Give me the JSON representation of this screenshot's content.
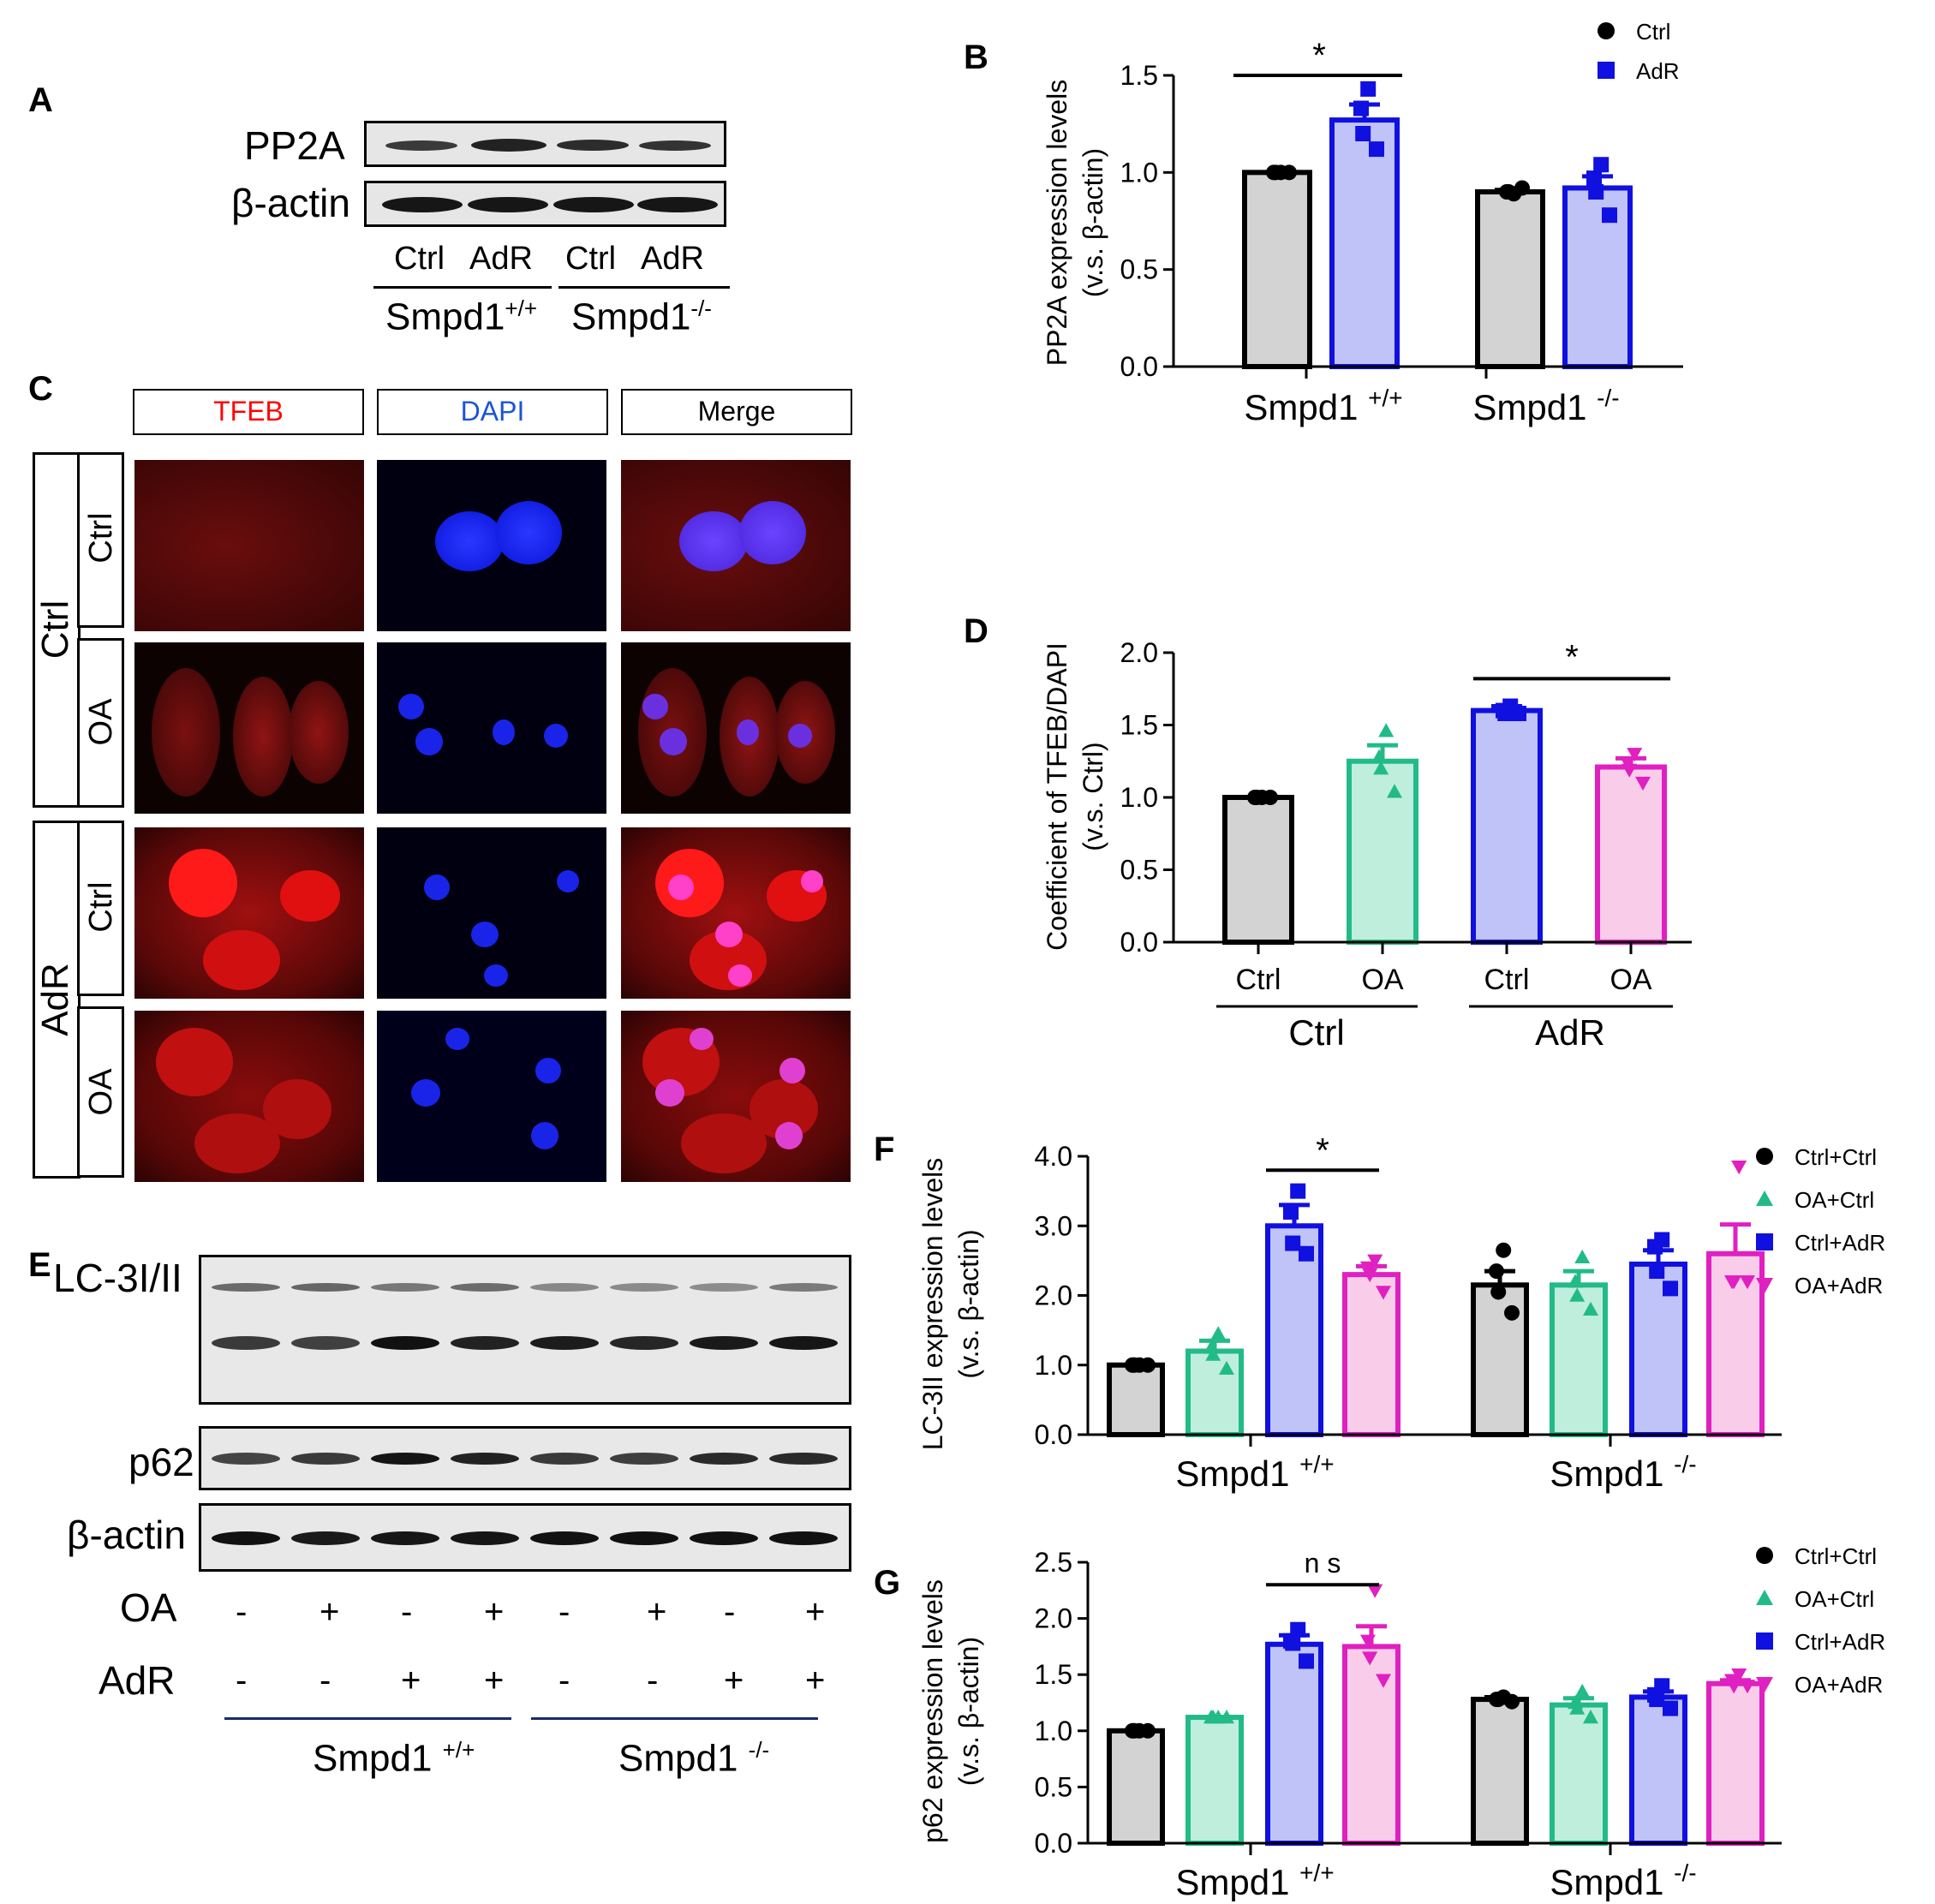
{
  "panels": {
    "A": {
      "label": "A",
      "bands": [
        "PP2A",
        "β-actin"
      ],
      "lanes": [
        "Ctrl",
        "AdR",
        "Ctrl",
        "AdR"
      ],
      "groups": [
        {
          "base": "Smpd1",
          "sup": "+/+"
        },
        {
          "base": "Smpd1",
          "sup": "-/-"
        }
      ]
    },
    "C": {
      "label": "C",
      "columns": [
        "TFEB",
        "DAPI",
        "Merge"
      ],
      "rows": [
        {
          "group": "Ctrl",
          "sub": "Ctrl"
        },
        {
          "group": "Ctrl",
          "sub": "OA"
        },
        {
          "group": "AdR",
          "sub": "Ctrl"
        },
        {
          "group": "AdR",
          "sub": "OA"
        }
      ],
      "groups": [
        "Ctrl",
        "AdR"
      ],
      "column_colors": [
        "#ff0000",
        "#1a55d8",
        "#000000"
      ]
    },
    "E": {
      "label": "E",
      "bands": [
        "LC-3I/II",
        "p62",
        "β-actin"
      ],
      "treatments": [
        {
          "name": "OA",
          "signs": [
            "-",
            "+",
            "-",
            "+",
            "-",
            "+",
            "-",
            "+"
          ]
        },
        {
          "name": "AdR",
          "signs": [
            "-",
            "-",
            "+",
            "+",
            "-",
            "-",
            "+",
            "+"
          ]
        }
      ],
      "groups": [
        {
          "base": "Smpd1",
          "sup": "+/+"
        },
        {
          "base": "Smpd1",
          "sup": "-/-"
        }
      ]
    }
  },
  "chart_data": [
    {
      "id": "B",
      "label": "B",
      "type": "bar",
      "ylabel": [
        "PP2A expression levels",
        "(v.s. β-actin)"
      ],
      "ylim": [
        0,
        1.5
      ],
      "yticks": [
        "0.0",
        "0.5",
        "1.0",
        "1.5"
      ],
      "groups": [
        {
          "base": "Smpd1",
          "sup": "+/+"
        },
        {
          "base": "Smpd1",
          "sup": "-/-"
        }
      ],
      "legend": [
        {
          "name": "Ctrl",
          "marker": "circle",
          "color": "#000000"
        },
        {
          "name": "AdR",
          "marker": "square",
          "color": "#1010e0"
        }
      ],
      "bars": [
        {
          "group": 0,
          "series": 0,
          "value": 1.0,
          "sem": 0.0,
          "points": [
            1.0,
            1.0,
            1.0,
            1.0
          ],
          "fill": "#d3d3d3",
          "stroke": "#000000"
        },
        {
          "group": 0,
          "series": 1,
          "value": 1.27,
          "sem": 0.08,
          "points": [
            1.43,
            1.33,
            1.2,
            1.12
          ],
          "fill": "#bfc3f7",
          "stroke": "#1010e0"
        },
        {
          "group": 1,
          "series": 0,
          "value": 0.9,
          "sem": 0.01,
          "points": [
            0.89,
            0.9,
            0.9,
            0.92
          ],
          "fill": "#d3d3d3",
          "stroke": "#000000"
        },
        {
          "group": 1,
          "series": 1,
          "value": 0.92,
          "sem": 0.06,
          "points": [
            1.04,
            0.97,
            0.9,
            0.78
          ],
          "fill": "#bfc3f7",
          "stroke": "#1010e0"
        }
      ],
      "significance": [
        {
          "from": 0,
          "to": 1,
          "y": 1.5,
          "text": "*"
        }
      ]
    },
    {
      "id": "D",
      "label": "D",
      "type": "bar",
      "ylabel": [
        "Coefficient of TFEB/DAPI",
        "(v.s. Ctrl)"
      ],
      "ylim": [
        0,
        2.0
      ],
      "yticks": [
        "0.0",
        "0.5",
        "1.0",
        "1.5",
        "2.0"
      ],
      "categories": [
        "Ctrl",
        "OA",
        "Ctrl",
        "OA"
      ],
      "groups": [
        "Ctrl",
        "AdR"
      ],
      "bars": [
        {
          "value": 1.0,
          "sem": 0.0,
          "points": [
            1.0,
            1.0,
            1.0,
            1.0
          ],
          "marker": "circle",
          "fill": "#d3d3d3",
          "stroke": "#000000"
        },
        {
          "value": 1.25,
          "sem": 0.11,
          "points": [
            1.46,
            1.28,
            1.2,
            1.04
          ],
          "marker": "triangle",
          "fill": "#bfeedd",
          "stroke": "#22bb88"
        },
        {
          "value": 1.6,
          "sem": 0.03,
          "points": [
            1.63,
            1.6,
            1.58,
            1.58
          ],
          "marker": "square",
          "fill": "#bfc3f7",
          "stroke": "#1010e0"
        },
        {
          "value": 1.21,
          "sem": 0.06,
          "points": [
            1.3,
            1.24,
            1.19,
            1.1
          ],
          "marker": "triangle-down",
          "fill": "#f9cdea",
          "stroke": "#e020c0"
        }
      ],
      "significance": [
        {
          "from": 2,
          "to": 3,
          "y": 1.82,
          "text": "*"
        }
      ]
    },
    {
      "id": "F",
      "label": "F",
      "type": "bar",
      "ylabel": [
        "LC-3II expression levels",
        "(v.s. β-actin)"
      ],
      "ylim": [
        0,
        4.0
      ],
      "yticks": [
        "0.0",
        "1.0",
        "2.0",
        "3.0",
        "4.0"
      ],
      "groups": [
        {
          "base": "Smpd1",
          "sup": "+/+"
        },
        {
          "base": "Smpd1",
          "sup": "-/-"
        }
      ],
      "legend": [
        {
          "name": "Ctrl+Ctrl",
          "marker": "circle",
          "color": "#000000"
        },
        {
          "name": "OA+Ctrl",
          "marker": "triangle",
          "color": "#22bb88"
        },
        {
          "name": "Ctrl+AdR",
          "marker": "square",
          "color": "#1010e0"
        },
        {
          "name": "OA+AdR",
          "marker": "triangle-down",
          "color": "#e020c0"
        }
      ],
      "bars": [
        {
          "series": 0,
          "value": 1.0,
          "sem": 0.0,
          "points": [
            1.0,
            1.0,
            1.0,
            1.0
          ]
        },
        {
          "series": 1,
          "value": 1.2,
          "sem": 0.15,
          "points": [
            1.45,
            1.25,
            1.15,
            0.95
          ]
        },
        {
          "series": 2,
          "value": 3.0,
          "sem": 0.3,
          "points": [
            3.5,
            3.2,
            2.75,
            2.6
          ]
        },
        {
          "series": 3,
          "value": 2.3,
          "sem": 0.12,
          "points": [
            2.5,
            2.4,
            2.3,
            2.05
          ]
        },
        {
          "series": 0,
          "value": 2.15,
          "sem": 0.2,
          "points": [
            2.65,
            2.35,
            2.05,
            1.75
          ]
        },
        {
          "series": 1,
          "value": 2.15,
          "sem": 0.2,
          "points": [
            2.55,
            2.2,
            2.0,
            1.8
          ]
        },
        {
          "series": 2,
          "value": 2.45,
          "sem": 0.2,
          "points": [
            2.8,
            2.7,
            2.35,
            2.1
          ]
        },
        {
          "series": 3,
          "value": 2.6,
          "sem": 0.42,
          "points": [
            3.85,
            2.2,
            2.2,
            2.2
          ]
        }
      ],
      "significance": [
        {
          "from": 2,
          "to": 3,
          "y": 3.8,
          "text": "*"
        }
      ]
    },
    {
      "id": "G",
      "label": "G",
      "type": "bar",
      "ylabel": [
        "p62 expression levels",
        "(v.s. β-actin)"
      ],
      "ylim": [
        0,
        2.5
      ],
      "yticks": [
        "0.0",
        "0.5",
        "1.0",
        "1.5",
        "2.0",
        "2.5"
      ],
      "groups": [
        {
          "base": "Smpd1",
          "sup": "+/+"
        },
        {
          "base": "Smpd1",
          "sup": "-/-"
        }
      ],
      "legend": [
        {
          "name": "Ctrl+Ctrl",
          "marker": "circle",
          "color": "#000000"
        },
        {
          "name": "OA+Ctrl",
          "marker": "triangle",
          "color": "#22bb88"
        },
        {
          "name": "Ctrl+AdR",
          "marker": "square",
          "color": "#1010e0"
        },
        {
          "name": "OA+AdR",
          "marker": "triangle-down",
          "color": "#e020c0"
        }
      ],
      "bars": [
        {
          "series": 0,
          "value": 1.0,
          "sem": 0.0,
          "points": [
            1.0,
            1.0,
            1.0,
            1.0
          ]
        },
        {
          "series": 1,
          "value": 1.12,
          "sem": 0.0,
          "points": [
            1.12,
            1.12,
            1.12,
            1.12
          ]
        },
        {
          "series": 2,
          "value": 1.77,
          "sem": 0.08,
          "points": [
            1.9,
            1.8,
            1.78,
            1.62
          ]
        },
        {
          "series": 3,
          "value": 1.75,
          "sem": 0.18,
          "points": [
            2.25,
            1.8,
            1.65,
            1.45
          ]
        },
        {
          "series": 0,
          "value": 1.28,
          "sem": 0.02,
          "points": [
            1.3,
            1.28,
            1.28,
            1.26
          ]
        },
        {
          "series": 1,
          "value": 1.23,
          "sem": 0.06,
          "points": [
            1.35,
            1.25,
            1.2,
            1.12
          ]
        },
        {
          "series": 2,
          "value": 1.3,
          "sem": 0.05,
          "points": [
            1.4,
            1.32,
            1.28,
            1.2
          ]
        },
        {
          "series": 3,
          "value": 1.42,
          "sem": 0.03,
          "points": [
            1.5,
            1.45,
            1.4,
            1.4
          ]
        }
      ],
      "significance": [
        {
          "from": 2,
          "to": 3,
          "y": 2.3,
          "text": "n s"
        }
      ]
    }
  ]
}
